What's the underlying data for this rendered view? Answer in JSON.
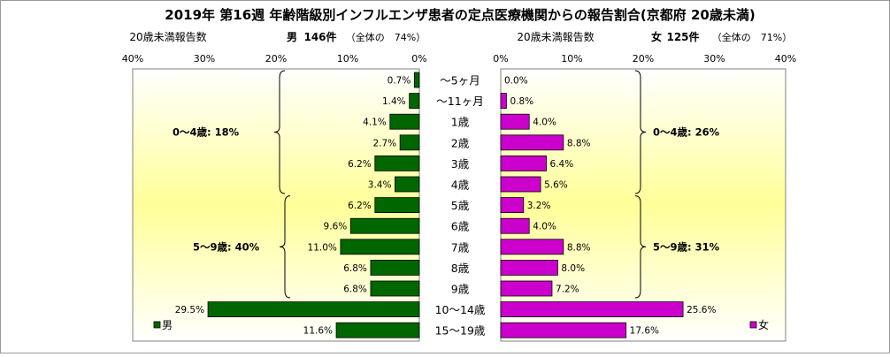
{
  "chart_data": {
    "type": "bar",
    "orientation": "horizontal-butterfly",
    "title": "2019年 第16週 年齢階級別インフルエンザ患者の定点医療機関からの報告割合(京都府 20歳未満)",
    "categories": [
      "〜5ヶ月",
      "〜11ヶ月",
      "1歳",
      "2歳",
      "3歳",
      "4歳",
      "5歳",
      "6歳",
      "7歳",
      "8歳",
      "9歳",
      "10〜14歳",
      "15〜19歳"
    ],
    "category_values": [
      5,
      11,
      1,
      2,
      3,
      4,
      5,
      6,
      7,
      8,
      9,
      14,
      19
    ],
    "series": [
      {
        "name": "男",
        "side": "left",
        "color": "#006600",
        "values": [
          0.7,
          1.4,
          4.1,
          2.7,
          6.2,
          3.4,
          6.2,
          9.6,
          11.0,
          6.8,
          6.8,
          29.5,
          11.6
        ],
        "data_labels": [
          "0.7%",
          "1.4%",
          "4.1%",
          "2.7%",
          "6.2%",
          "3.4%",
          "6.2%",
          "9.6%",
          "11.0%",
          "6.8%",
          "6.8%",
          "29.5%",
          "11.6%"
        ],
        "header": {
          "left": "20歳未満報告数",
          "sex": "男",
          "count": "146件",
          "share": "（全体の　74%）"
        },
        "axis": {
          "ticks": [
            "40%",
            "30%",
            "20%",
            "10%",
            "0%"
          ],
          "tick_values": [
            40,
            30,
            20,
            10,
            0
          ],
          "range": [
            0,
            40
          ],
          "reversed": true
        },
        "groups": [
          {
            "label": "0〜4歳: 18%",
            "from": 0,
            "to": 5
          },
          {
            "label": "5〜9歳: 40%",
            "from": 6,
            "to": 10
          }
        ]
      },
      {
        "name": "女",
        "side": "right",
        "color": "#cc00cc",
        "values": [
          0.0,
          0.8,
          4.0,
          8.8,
          6.4,
          5.6,
          3.2,
          4.0,
          8.8,
          8.0,
          7.2,
          25.6,
          17.6
        ],
        "data_labels": [
          "0.0%",
          "0.8%",
          "4.0%",
          "8.8%",
          "6.4%",
          "5.6%",
          "3.2%",
          "4.0%",
          "8.8%",
          "8.0%",
          "7.2%",
          "25.6%",
          "17.6%"
        ],
        "header": {
          "left": "20歳未満報告数",
          "sex": "女",
          "count": "125件",
          "share": "（全体の　71%）"
        },
        "axis": {
          "ticks": [
            "0%",
            "10%",
            "20%",
            "30%",
            "40%"
          ],
          "tick_values": [
            0,
            10,
            20,
            30,
            40
          ],
          "range": [
            0,
            40
          ],
          "reversed": false
        },
        "groups": [
          {
            "label": "0〜4歳: 26%",
            "from": 0,
            "to": 5
          },
          {
            "label": "5〜9歳: 31%",
            "from": 6,
            "to": 10
          }
        ]
      }
    ],
    "legend": {
      "left": "男",
      "right": "女",
      "placement": "bottom-outer-corners"
    },
    "background": {
      "gradient_from": "#ffffff",
      "gradient_to": "#ffff99"
    },
    "grid": false
  }
}
